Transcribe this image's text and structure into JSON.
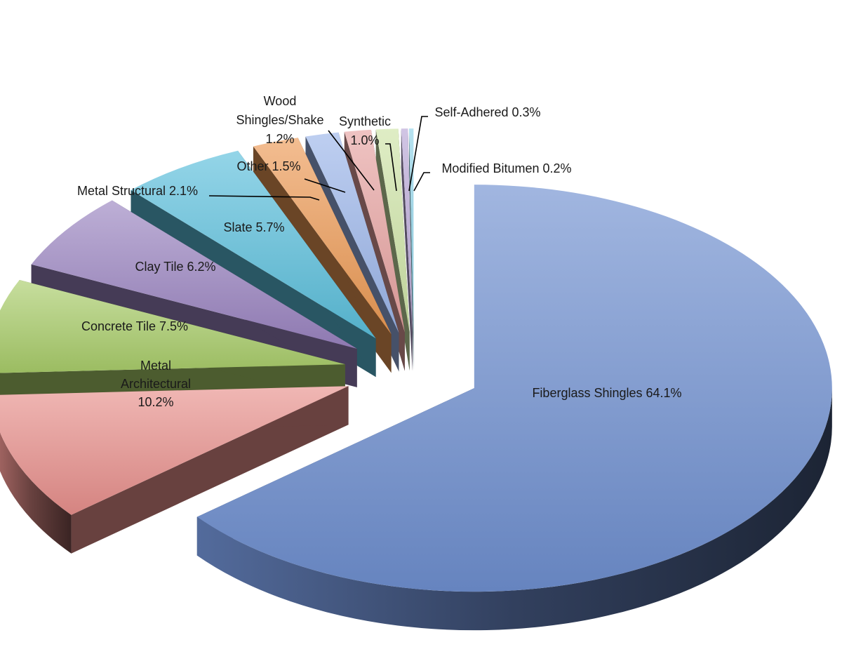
{
  "chart_data": {
    "type": "pie",
    "style": "3d-exploded",
    "title": "",
    "legend": "none",
    "slices": [
      {
        "name": "Fiberglass Shingles",
        "value": 64.1,
        "label_lines": [
          "Fiberglass Shingles 64.1%"
        ],
        "color": "#6f8fd0"
      },
      {
        "name": "Metal Architectural",
        "value": 10.2,
        "label_lines": [
          "Metal",
          "Architectural",
          "10.2%"
        ],
        "color": "#e8908c"
      },
      {
        "name": "Concrete Tile",
        "value": 7.5,
        "label_lines": [
          "Concrete Tile 7.5%"
        ],
        "color": "#a9cc69"
      },
      {
        "name": "Clay Tile",
        "value": 6.2,
        "label_lines": [
          "Clay Tile 6.2%"
        ],
        "color": "#9a84c0"
      },
      {
        "name": "Slate",
        "value": 5.7,
        "label_lines": [
          "Slate 5.7%"
        ],
        "color": "#5bbfdc"
      },
      {
        "name": "Metal Structural",
        "value": 2.1,
        "label_lines": [
          "Metal Structural 2.1%"
        ],
        "color": "#ec9a55"
      },
      {
        "name": "Other",
        "value": 1.5,
        "label_lines": [
          "Other 1.5%"
        ],
        "color": "#9bb5ea"
      },
      {
        "name": "Wood Shingles/Shake",
        "value": 1.2,
        "label_lines": [
          "Wood",
          "Shingles/Shake",
          "1.2%"
        ],
        "color": "#e7a3a1"
      },
      {
        "name": "Synthetic",
        "value": 1.0,
        "label_lines": [
          "Synthetic",
          "1.0%"
        ],
        "color": "#cde4a6"
      },
      {
        "name": "Self-Adhered",
        "value": 0.3,
        "label_lines": [
          "Self-Adhered 0.3%"
        ],
        "color": "#b8a6d6"
      },
      {
        "name": "Modified Bitumen",
        "value": 0.2,
        "label_lines": [
          "Modified Bitumen 0.2%"
        ],
        "color": "#8fd3e8"
      }
    ]
  }
}
